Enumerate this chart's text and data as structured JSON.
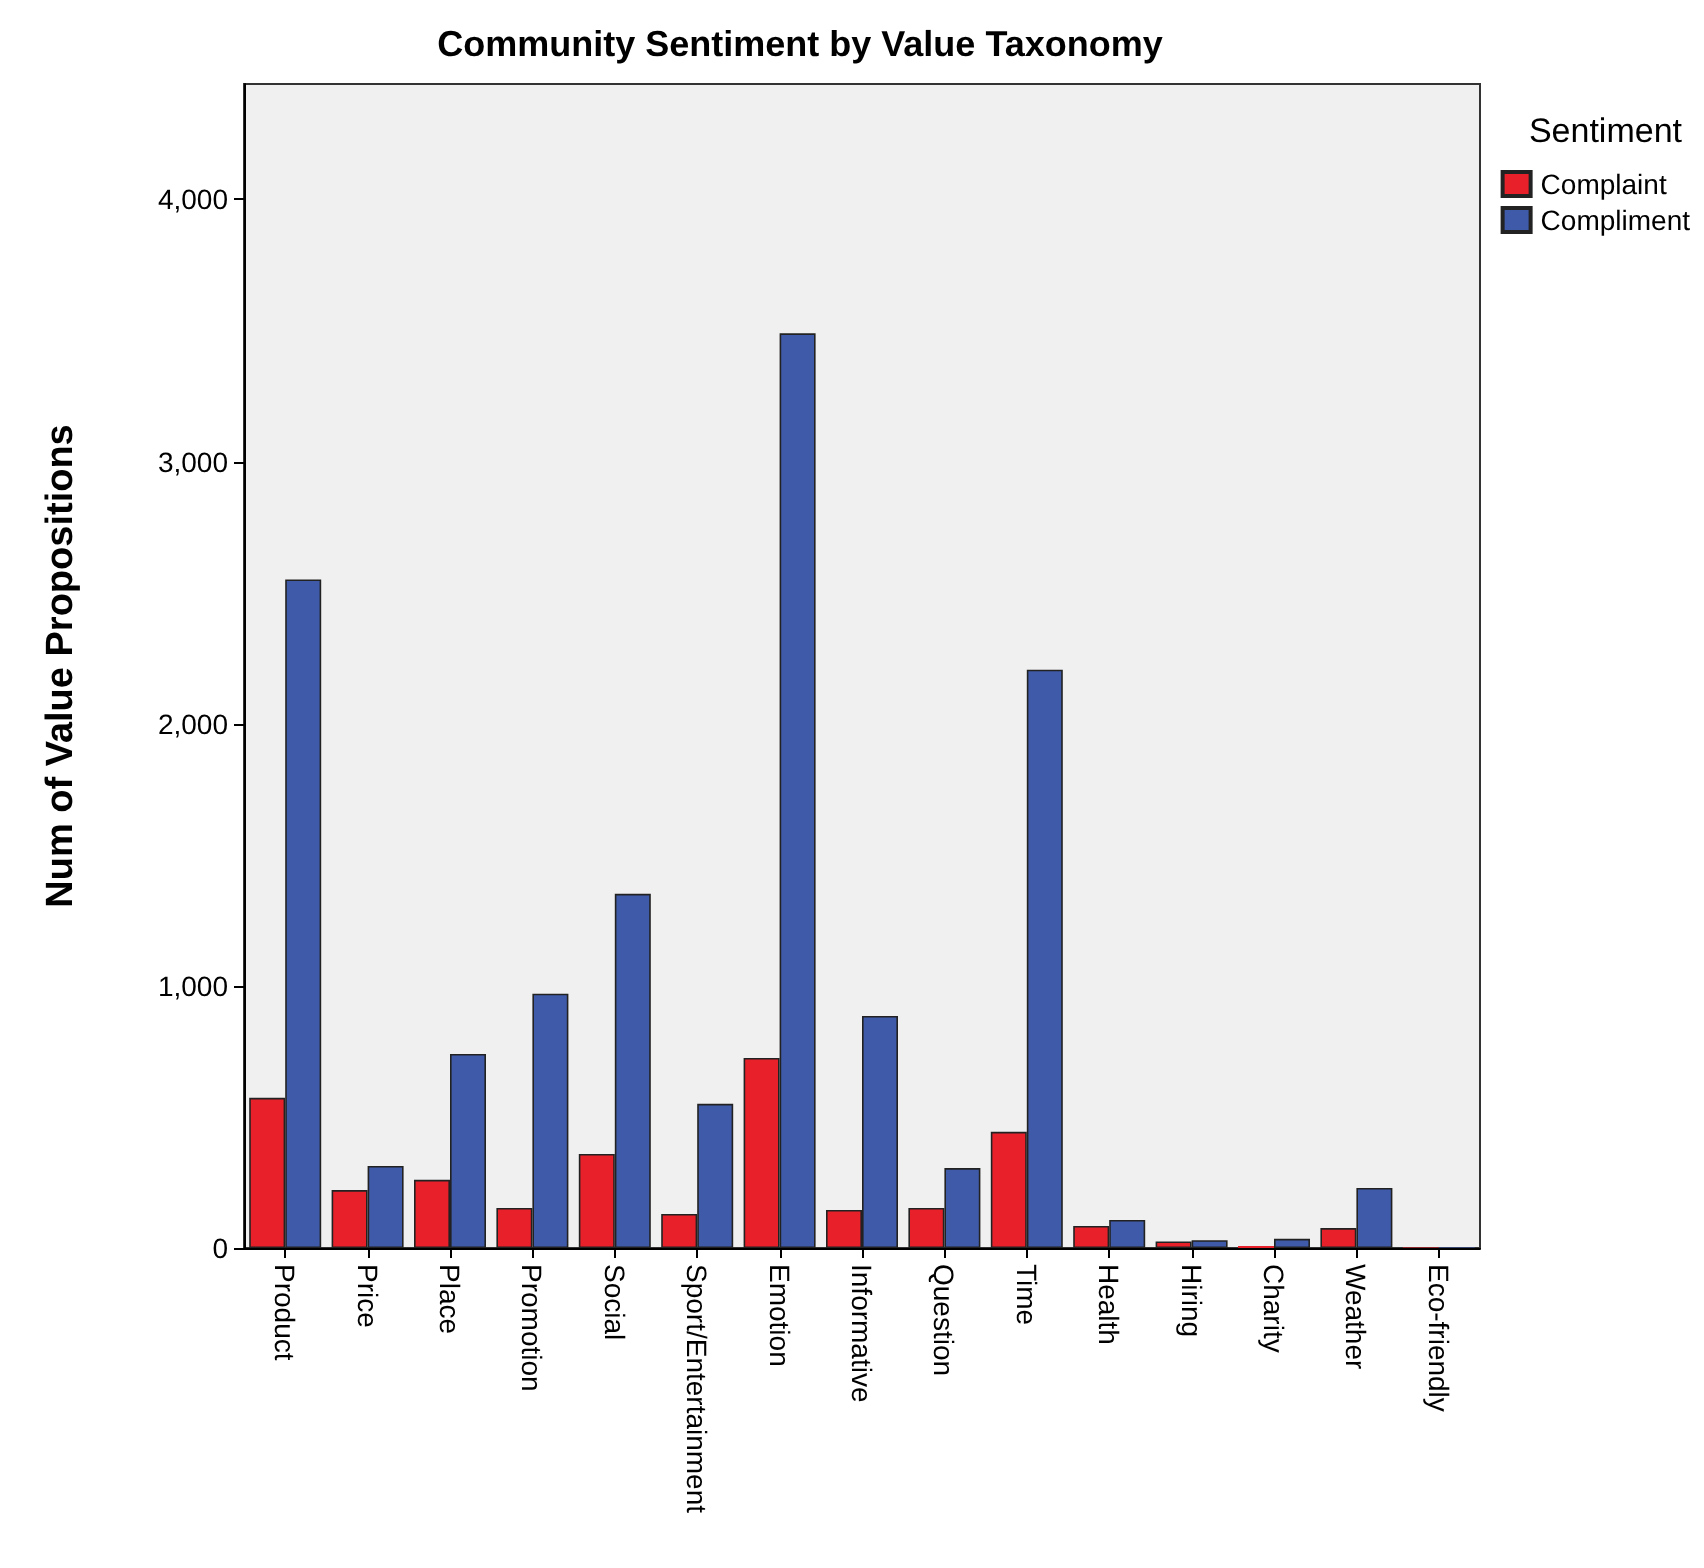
{
  "chart_data": {
    "type": "bar",
    "title": "Community Sentiment by Value Taxonomy",
    "ylabel": "Num of Value Propositions",
    "legend_title": "Sentiment",
    "legend": "top right",
    "grid": false,
    "categories": [
      "Product",
      "Price",
      "Place",
      "Promotion",
      "Social",
      "Sport/Entertainment",
      "Emotion",
      "Informative",
      "Question",
      "Time",
      "Health",
      "Hiring",
      "Charity",
      "Weather",
      "Eco-friendly"
    ],
    "series": [
      {
        "name": "Complaint",
        "color": "#e8202a",
        "values": [
          573,
          221,
          260,
          153,
          359,
          130,
          725,
          145,
          153,
          443,
          84,
          25,
          8,
          76,
          2
        ]
      },
      {
        "name": "Compliment",
        "color": "#3f5aa8",
        "values": [
          2550,
          313,
          740,
          970,
          1351,
          550,
          3489,
          885,
          305,
          2206,
          107,
          30,
          35,
          229,
          2
        ]
      }
    ],
    "ylim": [
      0,
      4440
    ],
    "yticks": [
      {
        "value": 0,
        "label": "0"
      },
      {
        "value": 1000,
        "label": "1,000"
      },
      {
        "value": 2000,
        "label": "2,000"
      },
      {
        "value": 3000,
        "label": "3,000"
      },
      {
        "value": 4000,
        "label": "4,000"
      }
    ]
  }
}
